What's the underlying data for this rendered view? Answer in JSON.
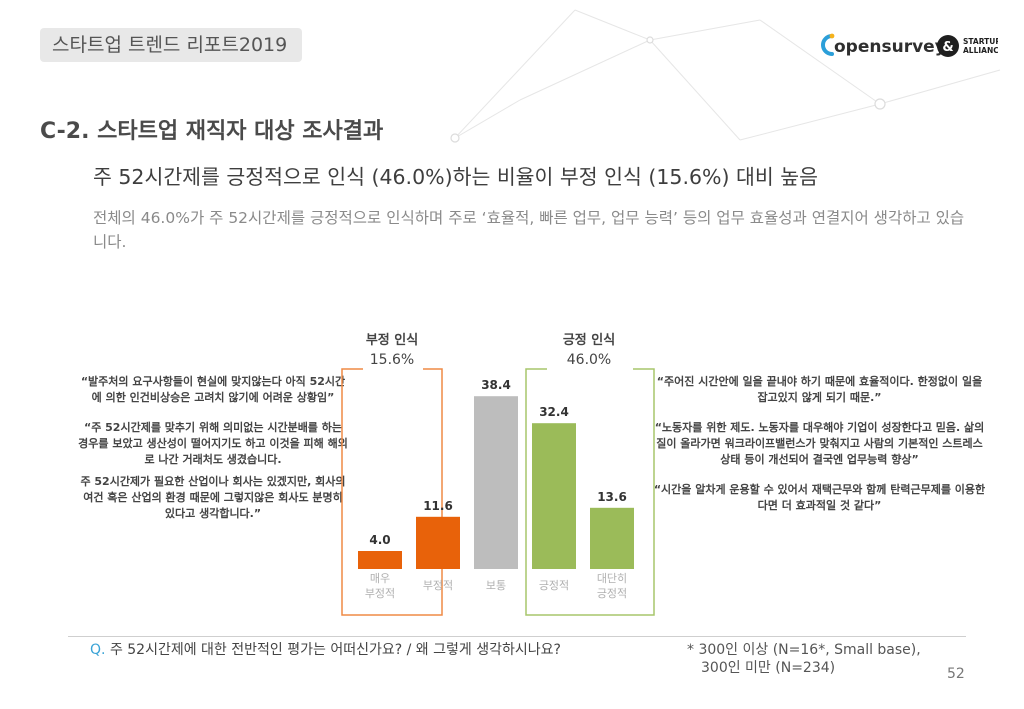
{
  "header": {
    "report_title": "스타트업 트렌드 리포트2019",
    "logo_text": "opensurvey",
    "partner_logo_line1": "STARTUP",
    "partner_logo_line2": "ALLIANCE"
  },
  "section_title": "C-2. 스타트업 재직자 대상 조사결과",
  "headline": "주 52시간제를 긍정적으로 인식 (46.0%)하는 비율이 부정 인식 (15.6%) 대비 높음",
  "description": "전체의 46.0%가 주 52시간제를 긍정적으로 인식하며 주로 ‘효율적, 빠른 업무, 업무 능력’ 등의 업무 효율성과 연결지어 생각하고 있습니다.",
  "quotes_left": [
    "“발주처의 요구사항들이 현실에 맞지않는다 아직 52시간에 의한 인건비상승은 고려치 않기에 어려운 상황임”",
    "“주 52시간제를 맞추기 위해 의미없는 시간분배를 하는 경우를 보았고 생산성이 떨어지기도 하고 이것을 피해 해외로 나간 거래처도 생겼습니다.",
    "주 52시간제가 필요한 산업이나 회사는 있겠지만, 회사의 여건 혹은 산업의 환경 때문에 그렇지않은 회사도 분명히 있다고 생각합니다.”"
  ],
  "quotes_right": [
    "“주어진 시간안에 일을 끝내야 하기 때문에 효율적이다. 한정없이 일을 잡고있지 않게 되기 때문.”",
    "“노동자를 위한 제도. 노동자를 대우해야 기업이 성장한다고 믿음. 삶의 질이 올라가면 워크라이프밸런스가 맞춰지고 사람의 기본적인 스트레스 상태 등이 개선되어 결국엔 업무능력 향상”",
    "“시간을 알차게 운용할 수 있어서 재택근무와 함께 탄력근무제를 이용한다면 더 효과적일 것 같다”"
  ],
  "question": {
    "prefix": "Q.",
    "text": "주 52시간제에 대한 전반적인 평가는 어떠신가요? / 왜 그렇게 생각하시나요?"
  },
  "footnote": {
    "line1": "* 300인 이상 (N=16*, Small base),",
    "line2": "300인 미만 (N=234)"
  },
  "page_number": "52",
  "colors": {
    "negative_strong": "#e8620a",
    "negative": "#e8620a",
    "neutral": "#bdbdbd",
    "positive": "#9bbb59",
    "positive_strong": "#9bbb59",
    "negative_box": "#ef8a45",
    "positive_box": "#a7c66b",
    "accent_blue": "#3aa3d6"
  },
  "chart_data": {
    "type": "bar",
    "categories": [
      "매우\n부정적",
      "부정적",
      "보통",
      "긍정적",
      "대단히\n긍정적"
    ],
    "values": [
      4.0,
      11.6,
      38.4,
      32.4,
      13.6
    ],
    "value_labels": [
      "4.0",
      "11.6",
      "38.4",
      "32.4",
      "13.6"
    ],
    "unit": "%",
    "ylim": [
      0,
      40
    ],
    "groups": [
      {
        "name": "부정 인식",
        "value_label": "15.6%",
        "category_indices": [
          0,
          1
        ]
      },
      {
        "name": "긍정 인식",
        "value_label": "46.0%",
        "category_indices": [
          3,
          4
        ]
      }
    ],
    "title": "",
    "xlabel": "",
    "ylabel": ""
  }
}
